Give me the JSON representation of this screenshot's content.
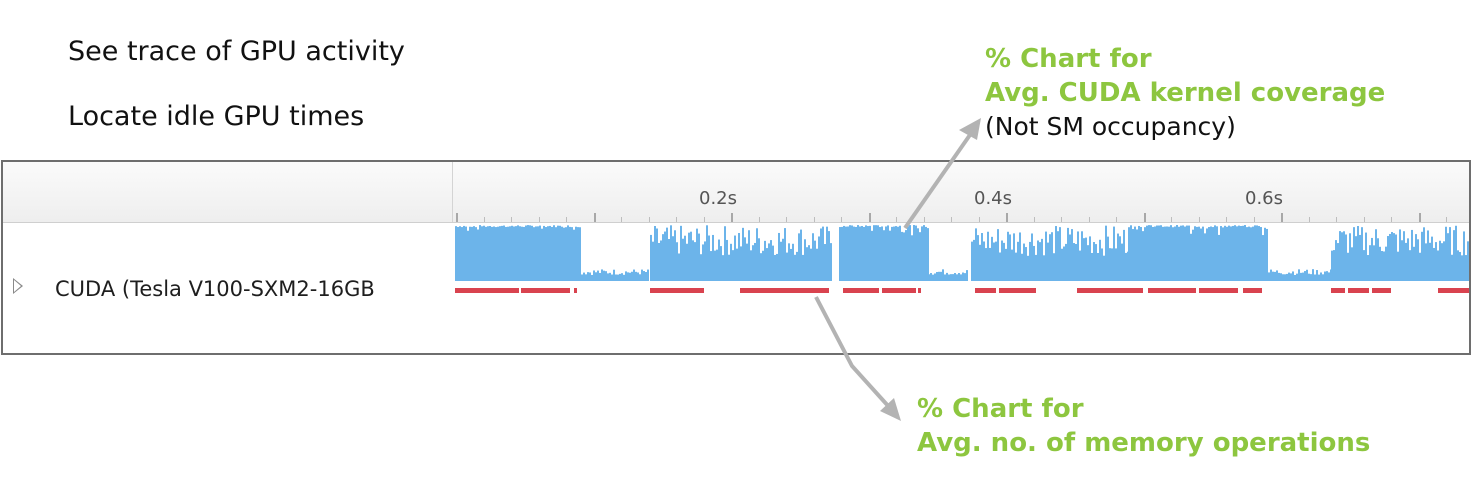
{
  "captions": {
    "line1": "See trace of GPU activity",
    "line2": "Locate idle GPU times"
  },
  "callouts": {
    "top": {
      "line1": "% Chart for",
      "line2": "Avg. CUDA kernel coverage",
      "note": "(Not SM occupancy)"
    },
    "bottom": {
      "line1": "% Chart for",
      "line2": "Avg. no. of memory operations"
    }
  },
  "timeline": {
    "ruler_ticks": [
      "0.2s",
      "0.4s",
      "0.6s"
    ],
    "row_label": "CUDA (Tesla V100-SXM2-16GB"
  },
  "colors": {
    "callout_green": "#8dc63f",
    "kernel_fill": "#6cb4ea",
    "memory_bar": "#d9434f",
    "arrow": "#b3b3b3"
  },
  "icons": {
    "row_expander": "triangle-right-icon"
  }
}
